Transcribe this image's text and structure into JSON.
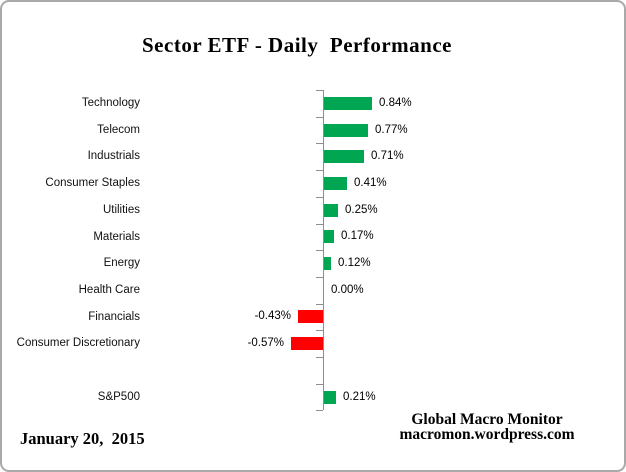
{
  "chart_data": {
    "type": "bar",
    "orientation": "horizontal",
    "title": "Sector ETF - Daily  Performance",
    "categories": [
      "Technology",
      "Telecom",
      "Industrials",
      "Consumer Staples",
      "Utilities",
      "Materials",
      "Energy",
      "Health Care",
      "Financials",
      "Consumer Discretionary",
      "S&P500"
    ],
    "values": [
      0.84,
      0.77,
      0.71,
      0.41,
      0.25,
      0.17,
      0.12,
      0.0,
      -0.43,
      -0.57,
      0.21
    ],
    "value_labels": [
      "0.84%",
      "0.77%",
      "0.71%",
      "0.41%",
      "0.25%",
      "0.17%",
      "0.12%",
      "0.00%",
      "-0.43%",
      "-0.57%",
      "0.21%"
    ],
    "unit": "%",
    "positive_color": "#00a651",
    "negative_color": "#ff0000",
    "axis_color": "#8e8e8e",
    "separator_before_index": 10,
    "legend": "none",
    "gridlines": false,
    "tick_marks": true
  },
  "footer": {
    "date": "January 20,  2015",
    "brand_line1": "Global Macro Monitor",
    "brand_line2": "macromon.wordpress.com"
  }
}
